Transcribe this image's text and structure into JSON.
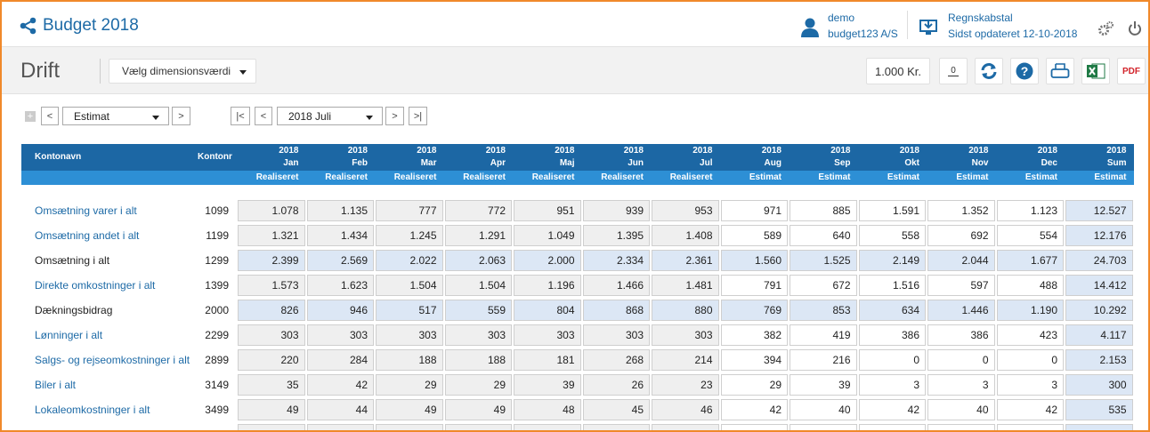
{
  "header": {
    "title": "Budget 2018",
    "user": "demo",
    "company": "budget123 A/S",
    "data_source": "Regnskabstal",
    "updated": "Sidst opdateret 12-10-2018"
  },
  "toolbar": {
    "page_title": "Drift",
    "dimension_select": "Vælg dimensionsværdi",
    "unit": "1.000 Kr.",
    "decimals": "0",
    "pdf": "PDF"
  },
  "controls": {
    "scenario": "Estimat",
    "period": "2018 Juli"
  },
  "table": {
    "columns": {
      "name": "Kontonavn",
      "number": "Kontonr"
    },
    "periods": [
      {
        "year": "2018",
        "month": "Jan",
        "type": "Realiseret",
        "style": "actual"
      },
      {
        "year": "2018",
        "month": "Feb",
        "type": "Realiseret",
        "style": "actual"
      },
      {
        "year": "2018",
        "month": "Mar",
        "type": "Realiseret",
        "style": "actual"
      },
      {
        "year": "2018",
        "month": "Apr",
        "type": "Realiseret",
        "style": "actual"
      },
      {
        "year": "2018",
        "month": "Maj",
        "type": "Realiseret",
        "style": "actual"
      },
      {
        "year": "2018",
        "month": "Jun",
        "type": "Realiseret",
        "style": "actual"
      },
      {
        "year": "2018",
        "month": "Jul",
        "type": "Realiseret",
        "style": "actual"
      },
      {
        "year": "2018",
        "month": "Aug",
        "type": "Estimat",
        "style": "estimate"
      },
      {
        "year": "2018",
        "month": "Sep",
        "type": "Estimat",
        "style": "estimate"
      },
      {
        "year": "2018",
        "month": "Okt",
        "type": "Estimat",
        "style": "estimate"
      },
      {
        "year": "2018",
        "month": "Nov",
        "type": "Estimat",
        "style": "estimate"
      },
      {
        "year": "2018",
        "month": "Dec",
        "type": "Estimat",
        "style": "estimate"
      },
      {
        "year": "2018",
        "month": "Sum",
        "type": "Estimat",
        "style": "sum"
      }
    ],
    "rows": [
      {
        "name": "Omsætning varer i alt",
        "number": "1099",
        "highlight": false,
        "values": [
          "1.078",
          "1.135",
          "777",
          "772",
          "951",
          "939",
          "953",
          "971",
          "885",
          "1.591",
          "1.352",
          "1.123",
          "12.527"
        ]
      },
      {
        "name": "Omsætning andet i alt",
        "number": "1199",
        "highlight": false,
        "values": [
          "1.321",
          "1.434",
          "1.245",
          "1.291",
          "1.049",
          "1.395",
          "1.408",
          "589",
          "640",
          "558",
          "692",
          "554",
          "12.176"
        ]
      },
      {
        "name": "Omsætning i alt",
        "number": "1299",
        "highlight": true,
        "values": [
          "2.399",
          "2.569",
          "2.022",
          "2.063",
          "2.000",
          "2.334",
          "2.361",
          "1.560",
          "1.525",
          "2.149",
          "2.044",
          "1.677",
          "24.703"
        ]
      },
      {
        "name": "Direkte omkostninger i alt",
        "number": "1399",
        "highlight": false,
        "values": [
          "1.573",
          "1.623",
          "1.504",
          "1.504",
          "1.196",
          "1.466",
          "1.481",
          "791",
          "672",
          "1.516",
          "597",
          "488",
          "14.412"
        ]
      },
      {
        "name": "Dækningsbidrag",
        "number": "2000",
        "highlight": true,
        "values": [
          "826",
          "946",
          "517",
          "559",
          "804",
          "868",
          "880",
          "769",
          "853",
          "634",
          "1.446",
          "1.190",
          "10.292"
        ]
      },
      {
        "name": "Lønninger i alt",
        "number": "2299",
        "highlight": false,
        "values": [
          "303",
          "303",
          "303",
          "303",
          "303",
          "303",
          "303",
          "382",
          "419",
          "386",
          "386",
          "423",
          "4.117"
        ]
      },
      {
        "name": "Salgs- og rejseomkostninger i alt",
        "number": "2899",
        "highlight": false,
        "values": [
          "220",
          "284",
          "188",
          "188",
          "181",
          "268",
          "214",
          "394",
          "216",
          "0",
          "0",
          "0",
          "2.153"
        ]
      },
      {
        "name": "Biler i alt",
        "number": "3149",
        "highlight": false,
        "values": [
          "35",
          "42",
          "29",
          "29",
          "39",
          "26",
          "23",
          "29",
          "39",
          "3",
          "3",
          "3",
          "300"
        ]
      },
      {
        "name": "Lokaleomkostninger i alt",
        "number": "3499",
        "highlight": false,
        "values": [
          "49",
          "44",
          "49",
          "49",
          "48",
          "45",
          "46",
          "42",
          "40",
          "42",
          "40",
          "42",
          "535"
        ]
      }
    ]
  }
}
